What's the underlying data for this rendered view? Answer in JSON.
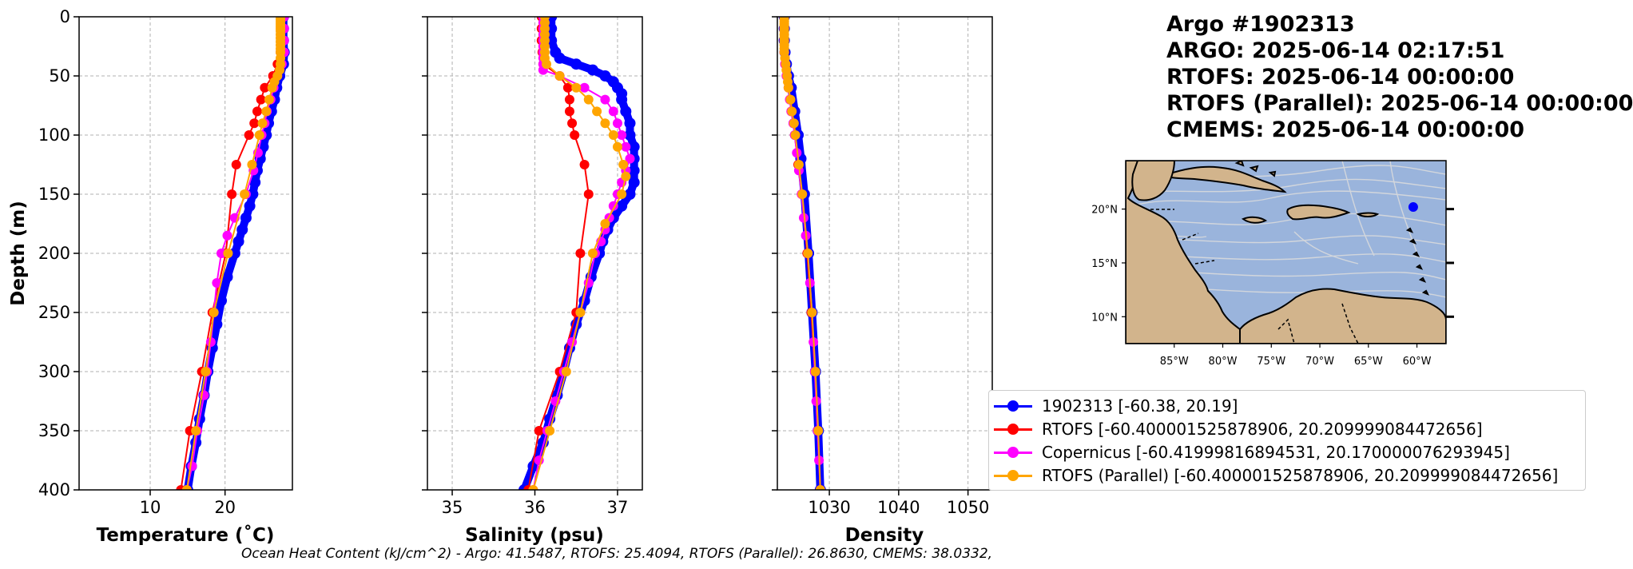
{
  "header": {
    "argo_id": "Argo #1902313",
    "argo_time": "ARGO:  2025-06-14 02:17:51",
    "rtofs_time": "RTOFS: 2025-06-14 00:00:00",
    "rtofs_parallel_time": "RTOFS (Parallel): 2025-06-14 00:00:00",
    "cmems_time": "CMEMS: 2025-06-14 00:00:00"
  },
  "footer": {
    "ohc": "Ocean Heat Content (kJ/cm^2) - Argo: 41.5487,  RTOFS: 25.4094,  RTOFS (Parallel): 26.8630,  CMEMS: 38.0332,"
  },
  "legend": {
    "items": [
      {
        "label": "1902313 [-60.38, 20.19]",
        "color": "#0000ff"
      },
      {
        "label": "RTOFS [-60.400001525878906, 20.209999084472656]",
        "color": "#ff0000"
      },
      {
        "label": "Copernicus [-60.41999816894531, 20.170000076293945]",
        "color": "#ff00ff"
      },
      {
        "label": "RTOFS (Parallel) [-60.400001525878906, 20.209999084472656]",
        "color": "#ffa500"
      }
    ]
  },
  "chart_data": [
    {
      "type": "line",
      "xlabel": "Temperature (˚C)",
      "ylabel": "Depth (m)",
      "xlim": [
        0.5,
        29
      ],
      "ylim": [
        400,
        0
      ],
      "xticks": [
        10,
        20
      ],
      "xtick_labels": [
        "10",
        "20"
      ],
      "yticks": [
        0,
        50,
        100,
        150,
        200,
        250,
        300,
        350,
        400
      ],
      "ytick_labels": [
        "0",
        "50",
        "100",
        "150",
        "200",
        "250",
        "300",
        "350",
        "400"
      ],
      "grid": true,
      "series": [
        {
          "name": "1902313",
          "color": "#0000ff",
          "marker_size": 7,
          "line_width": 10,
          "depth": [
            0,
            10,
            20,
            30,
            40,
            50,
            60,
            70,
            80,
            90,
            100,
            110,
            120,
            130,
            140,
            150,
            160,
            170,
            180,
            190,
            200,
            220,
            240,
            260,
            280,
            300,
            320,
            340,
            360,
            380,
            400
          ],
          "values": [
            27.8,
            27.8,
            27.8,
            27.9,
            27.8,
            27.3,
            26.9,
            26.6,
            26.2,
            25.8,
            25.5,
            25.1,
            24.7,
            24.3,
            24.0,
            23.7,
            23.3,
            22.8,
            22.3,
            21.8,
            21.3,
            20.3,
            19.5,
            18.9,
            18.3,
            17.7,
            17.2,
            16.6,
            16.1,
            15.5,
            15.0
          ]
        },
        {
          "name": "RTOFS",
          "color": "#ff0000",
          "marker_size": 6,
          "line_width": 2,
          "depth": [
            0,
            10,
            20,
            30,
            40,
            50,
            60,
            70,
            80,
            90,
            100,
            125,
            150,
            200,
            250,
            300,
            350,
            400
          ],
          "values": [
            27.7,
            27.6,
            27.5,
            27.4,
            27.0,
            26.4,
            25.3,
            24.8,
            24.3,
            23.9,
            23.2,
            21.5,
            20.9,
            20.1,
            18.3,
            16.9,
            15.3,
            14.1
          ]
        },
        {
          "name": "Copernicus",
          "color": "#ff00ff",
          "marker_size": 6,
          "line_width": 2,
          "depth": [
            0,
            10,
            20,
            30,
            40,
            50,
            60,
            70,
            80,
            90,
            100,
            115,
            130,
            150,
            170,
            185,
            200,
            225,
            250,
            275,
            300,
            320,
            350,
            380,
            400
          ],
          "values": [
            27.9,
            27.9,
            27.9,
            27.9,
            27.6,
            27.0,
            26.5,
            26.1,
            25.6,
            25.3,
            24.9,
            24.4,
            23.8,
            22.8,
            21.3,
            20.3,
            19.5,
            18.9,
            18.5,
            18.1,
            17.6,
            17.2,
            16.3,
            15.6,
            14.9
          ]
        },
        {
          "name": "RTOFS (Parallel)",
          "color": "#ffa500",
          "marker_size": 6,
          "line_width": 2,
          "depth": [
            0,
            2,
            4,
            6,
            8,
            10,
            12,
            15,
            18,
            21,
            24,
            27,
            30,
            35,
            40,
            45,
            50,
            55,
            60,
            70,
            80,
            90,
            100,
            125,
            150,
            200,
            250,
            300,
            350,
            400
          ],
          "values": [
            27.4,
            27.4,
            27.4,
            27.4,
            27.4,
            27.4,
            27.4,
            27.4,
            27.4,
            27.4,
            27.4,
            27.4,
            27.4,
            27.4,
            27.4,
            27.3,
            27.0,
            26.6,
            26.3,
            25.9,
            25.5,
            25.0,
            24.6,
            23.6,
            22.6,
            20.4,
            18.5,
            17.4,
            16.1,
            14.9
          ]
        }
      ]
    },
    {
      "type": "line",
      "xlabel": "Salinity (psu)",
      "ylabel": "",
      "xlim": [
        34.7,
        37.3
      ],
      "ylim": [
        400,
        0
      ],
      "xticks": [
        35,
        36,
        37
      ],
      "xtick_labels": [
        "35",
        "36",
        "37"
      ],
      "grid": true,
      "series": [
        {
          "name": "1902313",
          "color": "#0000ff",
          "marker_size": 7,
          "line_width": 10,
          "depth": [
            0,
            10,
            20,
            30,
            35,
            40,
            45,
            50,
            55,
            60,
            65,
            70,
            80,
            90,
            100,
            110,
            120,
            130,
            140,
            150,
            160,
            170,
            180,
            190,
            200,
            220,
            240,
            260,
            280,
            300,
            320,
            340,
            360,
            380,
            400
          ],
          "values": [
            36.2,
            36.2,
            36.2,
            36.25,
            36.3,
            36.5,
            36.7,
            36.85,
            36.95,
            37.0,
            37.05,
            37.05,
            37.1,
            37.15,
            37.15,
            37.2,
            37.2,
            37.2,
            37.2,
            37.15,
            37.05,
            36.95,
            36.88,
            36.82,
            36.78,
            36.68,
            36.6,
            36.5,
            36.42,
            36.35,
            36.27,
            36.18,
            36.1,
            35.98,
            35.87
          ]
        },
        {
          "name": "RTOFS",
          "color": "#ff0000",
          "marker_size": 6,
          "line_width": 2,
          "depth": [
            0,
            10,
            20,
            30,
            40,
            50,
            60,
            70,
            80,
            90,
            100,
            125,
            150,
            200,
            250,
            300,
            350,
            400
          ],
          "values": [
            36.08,
            36.08,
            36.08,
            36.09,
            36.1,
            36.3,
            36.4,
            36.42,
            36.42,
            36.45,
            36.48,
            36.6,
            36.65,
            36.55,
            36.5,
            36.3,
            36.05,
            35.92
          ]
        },
        {
          "name": "Copernicus",
          "color": "#ff00ff",
          "marker_size": 6,
          "line_width": 2,
          "depth": [
            0,
            5,
            10,
            15,
            20,
            25,
            30,
            35,
            40,
            45,
            50,
            60,
            70,
            80,
            90,
            100,
            110,
            120,
            130,
            140,
            150,
            160,
            170,
            180,
            190,
            200,
            225,
            250,
            275,
            300,
            325,
            350,
            375,
            400
          ],
          "values": [
            36.1,
            36.1,
            36.1,
            36.1,
            36.1,
            36.1,
            36.1,
            36.1,
            36.1,
            36.1,
            36.3,
            36.6,
            36.85,
            36.95,
            37.0,
            37.05,
            37.1,
            37.15,
            37.1,
            37.05,
            37.0,
            36.95,
            36.9,
            36.85,
            36.8,
            36.73,
            36.65,
            36.55,
            36.45,
            36.35,
            36.25,
            36.15,
            36.05,
            35.98
          ]
        },
        {
          "name": "RTOFS (Parallel)",
          "color": "#ffa500",
          "marker_size": 6,
          "line_width": 2,
          "depth": [
            0,
            5,
            10,
            15,
            20,
            25,
            30,
            35,
            40,
            50,
            60,
            70,
            80,
            90,
            100,
            110,
            125,
            135,
            150,
            175,
            200,
            250,
            300,
            350,
            400
          ],
          "values": [
            36.12,
            36.12,
            36.12,
            36.12,
            36.12,
            36.12,
            36.12,
            36.12,
            36.14,
            36.3,
            36.5,
            36.65,
            36.75,
            36.85,
            36.95,
            37.0,
            37.07,
            37.1,
            37.05,
            36.85,
            36.7,
            36.55,
            36.38,
            36.18,
            35.98
          ]
        }
      ]
    },
    {
      "type": "line",
      "xlabel": "Density",
      "ylabel": "",
      "xlim": [
        1022.5,
        1053.5
      ],
      "ylim": [
        400,
        0
      ],
      "xticks": [
        1030,
        1040,
        1050
      ],
      "xtick_labels": [
        "1030",
        "1040",
        "1050"
      ],
      "grid": true,
      "series": [
        {
          "name": "1902313",
          "color": "#0000ff",
          "marker_size": 7,
          "line_width": 10,
          "depth": [
            0,
            10,
            20,
            30,
            40,
            50,
            60,
            80,
            100,
            120,
            150,
            200,
            250,
            300,
            350,
            400
          ],
          "values": [
            1023.5,
            1023.5,
            1023.5,
            1023.6,
            1023.8,
            1024.1,
            1024.5,
            1025.0,
            1025.5,
            1025.9,
            1026.4,
            1027.0,
            1027.5,
            1028.0,
            1028.4,
            1028.7
          ]
        },
        {
          "name": "RTOFS",
          "color": "#ff0000",
          "marker_size": 6,
          "line_width": 2,
          "depth": [
            0,
            10,
            20,
            30,
            40,
            50,
            60,
            70,
            80,
            90,
            100,
            125,
            150,
            200,
            250,
            300,
            350,
            400
          ],
          "values": [
            1023.5,
            1023.5,
            1023.5,
            1023.5,
            1023.6,
            1023.9,
            1024.1,
            1024.3,
            1024.5,
            1024.8,
            1025.0,
            1025.5,
            1026.0,
            1026.8,
            1027.4,
            1027.9,
            1028.3,
            1028.7
          ]
        },
        {
          "name": "Copernicus",
          "color": "#ff00ff",
          "marker_size": 6,
          "line_width": 2,
          "depth": [
            0,
            10,
            20,
            30,
            40,
            50,
            60,
            70,
            80,
            90,
            100,
            115,
            130,
            150,
            170,
            185,
            200,
            225,
            250,
            275,
            300,
            325,
            350,
            375,
            400
          ],
          "values": [
            1023.5,
            1023.5,
            1023.5,
            1023.5,
            1023.6,
            1023.8,
            1024.1,
            1024.3,
            1024.5,
            1024.8,
            1025.0,
            1025.3,
            1025.6,
            1026.0,
            1026.3,
            1026.6,
            1026.9,
            1027.2,
            1027.5,
            1027.7,
            1027.9,
            1028.1,
            1028.3,
            1028.5,
            1028.7
          ]
        },
        {
          "name": "RTOFS (Parallel)",
          "color": "#ffa500",
          "marker_size": 6,
          "line_width": 2,
          "depth": [
            0,
            2,
            4,
            6,
            8,
            10,
            12,
            15,
            18,
            21,
            24,
            27,
            30,
            35,
            40,
            45,
            50,
            55,
            60,
            70,
            80,
            90,
            100,
            125,
            150,
            200,
            250,
            300,
            350,
            400
          ],
          "values": [
            1023.5,
            1023.5,
            1023.5,
            1023.5,
            1023.5,
            1023.5,
            1023.5,
            1023.5,
            1023.5,
            1023.5,
            1023.5,
            1023.5,
            1023.5,
            1023.6,
            1023.7,
            1023.8,
            1023.9,
            1024.0,
            1024.1,
            1024.4,
            1024.6,
            1024.9,
            1025.1,
            1025.6,
            1026.1,
            1026.9,
            1027.5,
            1028.0,
            1028.4,
            1028.7
          ]
        }
      ]
    },
    {
      "type": "map",
      "title": "",
      "xlim": [
        -90,
        -57
      ],
      "ylim": [
        7.5,
        24.5
      ],
      "xticks": [
        -85,
        -80,
        -75,
        -70,
        -65,
        -60
      ],
      "xtick_labels": [
        "85°W",
        "80°W",
        "75°W",
        "70°W",
        "65°W",
        "60°W"
      ],
      "yticks": [
        10,
        15,
        20
      ],
      "ytick_labels": [
        "10°N",
        "15°N",
        "20°N"
      ],
      "ocean_color": "#9ab4dc",
      "land_color": "#d2b48c",
      "marker": {
        "lon": -60.38,
        "lat": 20.19,
        "color": "#0000ff"
      }
    }
  ]
}
